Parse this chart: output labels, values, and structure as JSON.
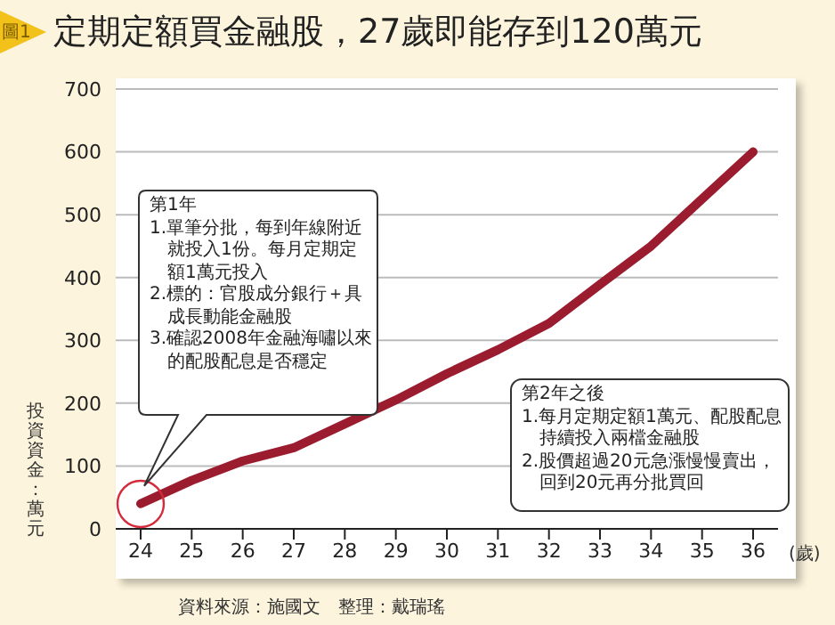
{
  "chart_data": {
    "type": "line",
    "title": "定期定額買金融股，27歲即能存到120萬元",
    "xlabel": "(歲)",
    "ylabel": "投資資金：萬元",
    "categories": [
      "24",
      "25",
      "26",
      "27",
      "28",
      "29",
      "30",
      "31",
      "32",
      "33",
      "34",
      "35",
      "36"
    ],
    "series": [
      {
        "color": "#9b1c2e",
        "values": [
          40,
          77,
          108,
          129,
          167,
          205,
          247,
          285,
          327,
          389,
          450,
          525,
          600
        ]
      }
    ],
    "ylim": [
      0,
      700
    ],
    "yticks": [
      0,
      100,
      200,
      300,
      400,
      500,
      600,
      700
    ],
    "grid": "y",
    "legend": false,
    "marker": "none",
    "line_style": "solid",
    "annotations": [
      "圖1",
      "第1年\n1.單筆分批，每到年線附近就投入1份。每月定期定額1萬元投入\n2.標的：官股成分銀行＋具成長動能金融股\n3.確認2008年金融海嘯以來的配股配息是否穩定",
      "第2年之後\n1.每月定期定額1萬元、配股配息持續投入兩檔金融股\n2.股價超過20元急漲慢慢賣出，回到20元再分批買回",
      "資料來源：施國文　整理：戴瑞瑤"
    ]
  }
}
